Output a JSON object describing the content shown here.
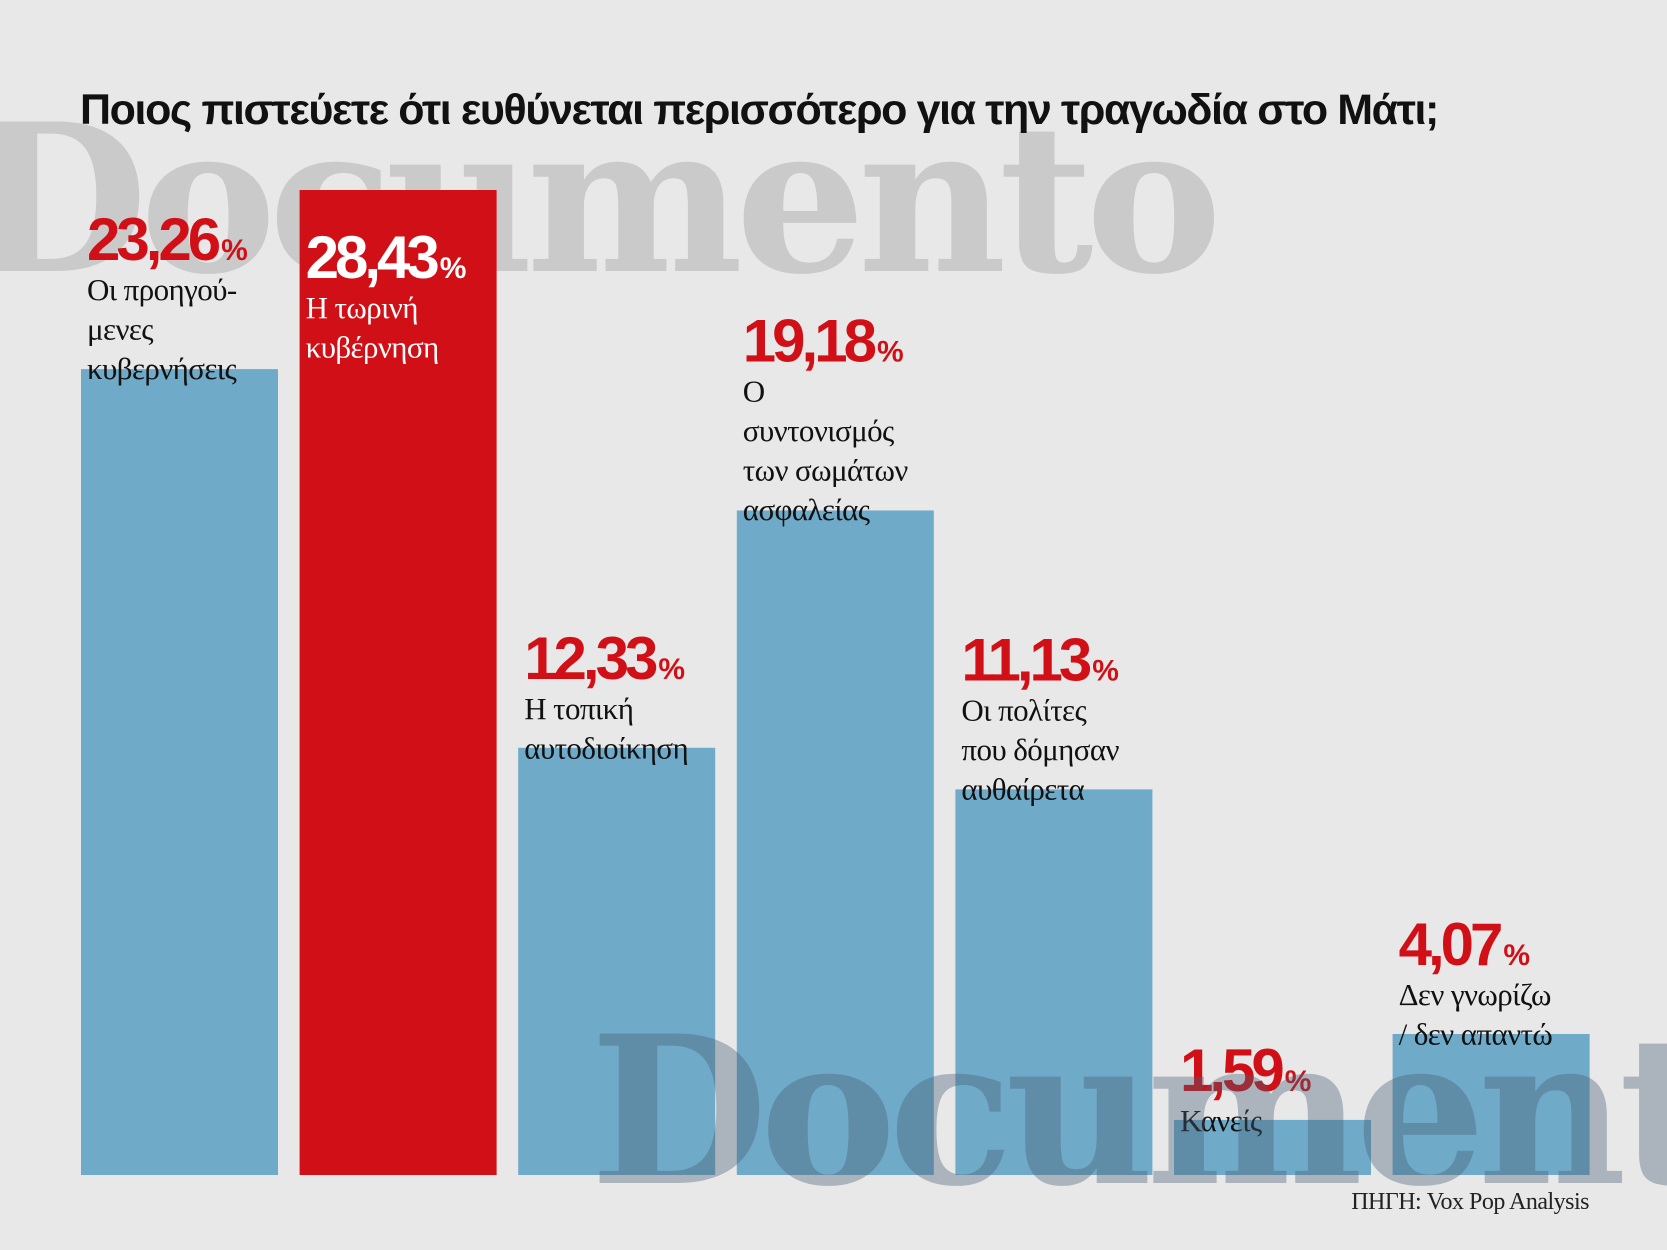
{
  "watermark": "Documento",
  "title": "Ποιος πιστεύετε ότι ευθύνεται περισσότερο για την τραγωδία στο Μάτι;",
  "source": "ΠΗΓΗ: Vox Pop Analysis",
  "colors": {
    "bar": "#6faac8",
    "highlight_bar": "#d01016",
    "value_text": "#d01016",
    "label_text": "#111111",
    "highlight_text": "#ffffff",
    "background": "#e8e8e8"
  },
  "chart_data": {
    "type": "bar",
    "title": "Ποιος πιστεύετε ότι ευθύνεται περισσότερο για την τραγωδία στο Μάτι;",
    "unit": "%",
    "categories": [
      [
        "Οι προηγού-",
        "μενες",
        "κυβερνήσεις"
      ],
      [
        "Η τωρινή",
        "κυβέρνηση"
      ],
      [
        "Η τοπική",
        "αυτοδιοίκηση"
      ],
      [
        "Ο",
        "συντονισμός",
        "των σωμάτων",
        "ασφαλείας"
      ],
      [
        "Οι πολίτες",
        "που δόμησαν",
        "αυθαίρετα"
      ],
      [
        "Κανείς"
      ],
      [
        "Δεν γνωρίζω",
        "/ δεν απαντώ"
      ]
    ],
    "value_labels": [
      "23,26",
      "28,43",
      "12,33",
      "19,18",
      "11,13",
      "1,59",
      "4,07"
    ],
    "values": [
      23.26,
      28.43,
      12.33,
      19.18,
      11.13,
      1.59,
      4.07
    ],
    "highlight_index": 1,
    "ylim": [
      0,
      28.43
    ],
    "grid": false,
    "legend": "none"
  }
}
